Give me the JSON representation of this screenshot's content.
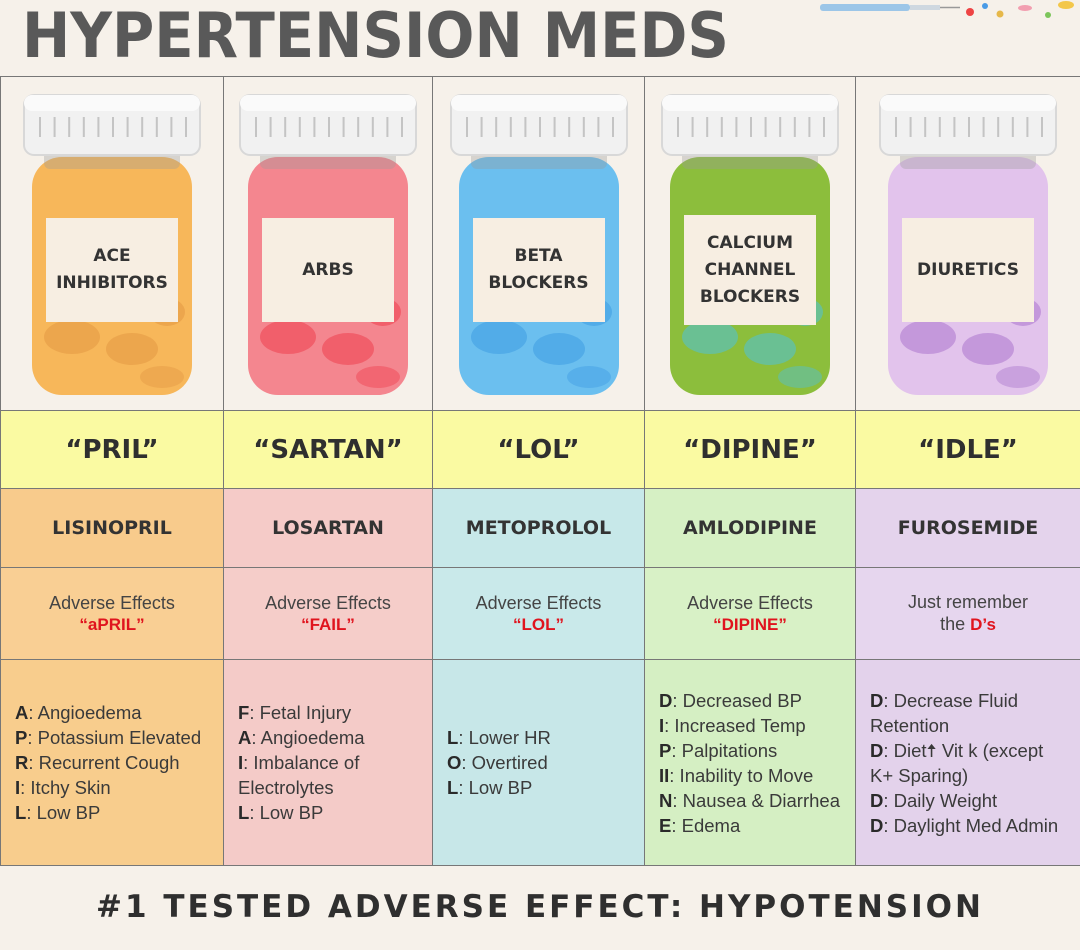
{
  "title": "HYPERTENSION MEDS",
  "columns": [
    {
      "class_label": "ACE INHIBITORS",
      "jar_color": "#f7b75a",
      "pill_color": "#e8a04a",
      "suffix": "“PRIL”",
      "drug": "LISINOPRIL",
      "drug_bg": "#f8cb8c",
      "ae_bg": "#f9cf94",
      "list_bg": "#f8cd8d",
      "ae_line1": "Adverse Effects",
      "ae_line2": "“aPRIL”",
      "effects": [
        {
          "k": "A",
          "v": ": Angioedema"
        },
        {
          "k": "P",
          "v": ": Potassium Elevated"
        },
        {
          "k": "R",
          "v": ": Recurrent Cough"
        },
        {
          "k": "I",
          "v": ": Itchy Skin"
        },
        {
          "k": "L",
          "v": ": Low BP"
        }
      ]
    },
    {
      "class_label": "ARBS",
      "jar_color": "#f4868f",
      "pill_color": "#f0525f",
      "suffix": "“SARTAN”",
      "drug": "LOSARTAN",
      "drug_bg": "#f5cbc8",
      "ae_bg": "#f5cdc9",
      "list_bg": "#f4cbc8",
      "ae_line1": "Adverse Effects",
      "ae_line2": "“FAIL”",
      "effects": [
        {
          "k": "F",
          "v": ": Fetal Injury"
        },
        {
          "k": "A",
          "v": ": Angioedema"
        },
        {
          "k": "I",
          "v": ": Imbalance of Electrolytes"
        },
        {
          "k": "L",
          "v": ": Low BP"
        }
      ]
    },
    {
      "class_label": "BETA BLOCKERS",
      "jar_color": "#6bbfef",
      "pill_color": "#4aa5e6",
      "suffix": "“LOL”",
      "drug": "METOPROLOL",
      "drug_bg": "#c7e8e9",
      "ae_bg": "#c9e9ea",
      "list_bg": "#c7e7e8",
      "ae_line1": "Adverse Effects",
      "ae_line2": "“LOL”",
      "effects": [
        {
          "k": "L",
          "v": ": Lower HR"
        },
        {
          "k": "O",
          "v": ": Overtired"
        },
        {
          "k": "L",
          "v": ": Low BP"
        }
      ]
    },
    {
      "class_label": "CALCIUM CHANNEL BLOCKERS",
      "jar_color": "#8cbe3c",
      "pill_color": "#5fc0b0",
      "suffix": "“DIPINE”",
      "drug": "AMLODIPINE",
      "drug_bg": "#d6f0c4",
      "ae_bg": "#d8f1c6",
      "list_bg": "#d5efc3",
      "ae_line1": "Adverse Effects",
      "ae_line2": "“DIPINE”",
      "effects": [
        {
          "k": "D",
          "v": ": Decreased BP"
        },
        {
          "k": "I",
          "v": ": Increased Temp"
        },
        {
          "k": "P",
          "v": ": Palpitations"
        },
        {
          "k": "II",
          "v": ": Inability to Move"
        },
        {
          "k": "N",
          "v": ": Nausea & Diarrhea"
        },
        {
          "k": "E",
          "v": ": Edema"
        }
      ]
    },
    {
      "class_label": "DIURETICS",
      "jar_color": "#e2c3ec",
      "pill_color": "#b98ad6",
      "suffix": "“IDLE”",
      "drug": "FUROSEMIDE",
      "drug_bg": "#e4d3ec",
      "ae_bg": "#e6d6ee",
      "list_bg": "#e3d2eb",
      "ae_line1": "Just remember",
      "ae_line2": "the D’s",
      "effects": [
        {
          "k": "D",
          "v": ": Decrease Fluid Retention"
        },
        {
          "k": "D",
          "v": ": Diet🠅 Vit k (except K+ Sparing)"
        },
        {
          "k": "D",
          "v": ": Daily Weight"
        },
        {
          "k": "D",
          "v": ": Daylight Med Admin"
        }
      ]
    }
  ],
  "footer": "#1 TESTED ADVERSE EFFECT: HYPOTENSION"
}
